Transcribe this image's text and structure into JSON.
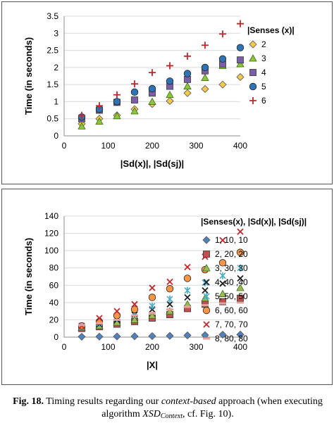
{
  "chart_data": [
    {
      "type": "scatter",
      "title": "",
      "xlabel": "|Sd(x)|, |Sd(sj)|",
      "ylabel": "Time (in seconds)",
      "xlim": [
        0,
        400
      ],
      "ylim": [
        0,
        3.5
      ],
      "xticks": [
        "0",
        "100",
        "200",
        "300",
        "400"
      ],
      "yticks": [
        "0",
        "0.5",
        "1",
        "1.5",
        "2",
        "2.5",
        "3",
        "3.5"
      ],
      "legend_title": "|Senses (x)|",
      "legend_position": "right",
      "grid": true,
      "x": [
        40,
        80,
        120,
        160,
        200,
        240,
        280,
        320,
        360,
        400
      ],
      "series": [
        {
          "name": "2",
          "marker": "diamond",
          "color": "#f3c94c",
          "values": [
            0.35,
            0.5,
            0.6,
            0.78,
            0.93,
            1.02,
            1.25,
            1.37,
            1.5,
            1.72
          ]
        },
        {
          "name": "3",
          "marker": "triangle",
          "color": "#8cc63f",
          "values": [
            0.28,
            0.42,
            0.58,
            0.72,
            1.0,
            1.2,
            1.45,
            1.7,
            2.05,
            2.1
          ]
        },
        {
          "name": "4",
          "marker": "square",
          "color": "#7b5ea8",
          "values": [
            0.5,
            0.75,
            0.98,
            1.05,
            1.25,
            1.45,
            1.65,
            1.9,
            2.1,
            2.22
          ]
        },
        {
          "name": "5",
          "marker": "circle",
          "color": "#2e74b5",
          "values": [
            0.55,
            0.78,
            1.0,
            1.28,
            1.38,
            1.6,
            1.82,
            2.0,
            2.25,
            2.58
          ]
        },
        {
          "name": "6",
          "marker": "plus",
          "color": "#c0272d",
          "values": [
            0.6,
            0.88,
            1.2,
            1.52,
            1.85,
            2.05,
            2.33,
            2.65,
            2.98,
            3.28
          ]
        }
      ]
    },
    {
      "type": "scatter",
      "title": "",
      "xlabel": "|X|",
      "ylabel": "Time (in seconds)",
      "xlim": [
        0,
        400
      ],
      "ylim": [
        0,
        140
      ],
      "xticks": [
        "0",
        "100",
        "200",
        "300",
        "400"
      ],
      "yticks": [
        "0",
        "20",
        "40",
        "60",
        "80",
        "100",
        "120",
        "140"
      ],
      "legend_title": "|Senses(x), |Sd(x)|, |Sd(sj)|",
      "legend_position": "right",
      "grid": true,
      "x": [
        40,
        80,
        120,
        160,
        200,
        240,
        280,
        320,
        360,
        400
      ],
      "series": [
        {
          "name": "1, 10, 10",
          "marker": "diamond",
          "color": "#4f81bd",
          "values": [
            0.5,
            0.6,
            0.8,
            1.0,
            1.2,
            1.5,
            2.0,
            2.3,
            2.8,
            3.0
          ]
        },
        {
          "name": "2, 20, 20",
          "marker": "square",
          "color": "#c0504d",
          "values": [
            10,
            12,
            15,
            18,
            22,
            26,
            33,
            38,
            41,
            45
          ]
        },
        {
          "name": "3, 30, 30",
          "marker": "triangle",
          "color": "#9bbb59",
          "values": [
            11,
            13,
            17,
            20,
            25,
            30,
            38,
            45,
            50,
            57
          ]
        },
        {
          "name": "4, 40 ,40",
          "marker": "x",
          "color": "#1f1f1f",
          "values": [
            12,
            15,
            20,
            26,
            32,
            38,
            46,
            54,
            62,
            68
          ]
        },
        {
          "name": "5, 50, 50",
          "marker": "star",
          "color": "#4bacc6",
          "values": [
            12,
            16,
            22,
            28,
            36,
            44,
            54,
            63,
            71,
            80
          ]
        },
        {
          "name": "6, 60, 60",
          "marker": "circle",
          "color": "#f79646",
          "values": [
            13,
            18,
            25,
            32,
            46,
            56,
            68,
            78,
            86,
            98
          ]
        },
        {
          "name": "7, 70, 70",
          "marker": "x",
          "color": "#c0272d",
          "values": [
            13,
            22,
            30,
            38,
            57,
            64,
            81,
            93,
            112,
            122
          ]
        },
        {
          "name": "8, 80, 80",
          "marker": "dash",
          "color": "#e7a2a0",
          "values": [
            14,
            16,
            20,
            25,
            28,
            32,
            35,
            37,
            39,
            40
          ]
        }
      ]
    }
  ],
  "caption": {
    "label": "Fig. 18.",
    "text1": " Timing results regarding our ",
    "emph1": "context-based",
    "text2": " approach (when executing algorithm ",
    "algo": "XSD",
    "algo_sub": "Context",
    "text3": ", cf. Fig. 10)."
  }
}
